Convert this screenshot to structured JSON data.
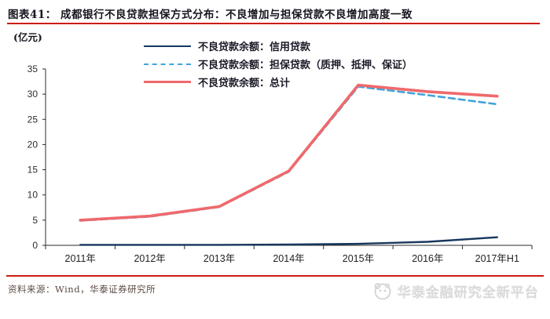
{
  "header": {
    "title": "图表41：  成都银行不良贷款担保方式分布：不良增加与担保贷款不良增加高度一致"
  },
  "chart_data": {
    "type": "line",
    "title": "成都银行不良贷款担保方式分布",
    "unit": "(亿元)",
    "xlabel": "",
    "ylabel": "亿元",
    "ylim": [
      0,
      35
    ],
    "ytick_step": 5,
    "grid": false,
    "legend_position": "top-center",
    "categories": [
      "2011年",
      "2012年",
      "2013年",
      "2014年",
      "2015年",
      "2016年",
      "2017年H1"
    ],
    "series": [
      {
        "name": "不良贷款余额：信用贷款",
        "color": "#17375e",
        "style": "solid",
        "width": 2.4,
        "dash": "",
        "values": [
          0.1,
          0.1,
          0.1,
          0.15,
          0.3,
          0.7,
          1.6
        ]
      },
      {
        "name": "不良贷款余额：担保贷款（质押、抵押、保证）",
        "color": "#41a3dc",
        "style": "dashed",
        "width": 2.6,
        "dash": "8 5",
        "values": [
          4.9,
          5.7,
          7.6,
          14.6,
          31.5,
          29.8,
          28.0
        ]
      },
      {
        "name": "不良贷款余额：总计",
        "color": "#f0696c",
        "style": "solid",
        "width": 3.6,
        "dash": "",
        "values": [
          5.0,
          5.8,
          7.7,
          14.75,
          31.8,
          30.5,
          29.6
        ]
      }
    ]
  },
  "footer": {
    "source": "资料来源：Wind，华泰证券研究所",
    "watermark": "华泰金融研究全新平台"
  },
  "colors": {
    "accent_red": "#cc1b10",
    "title_text": "#15151f",
    "axis_text": "#2e2e2e",
    "source_text": "#5b4b43",
    "watermark_grey": "#dadada"
  },
  "icons": {
    "huatai_logo": "panda-face-circle-logo"
  }
}
